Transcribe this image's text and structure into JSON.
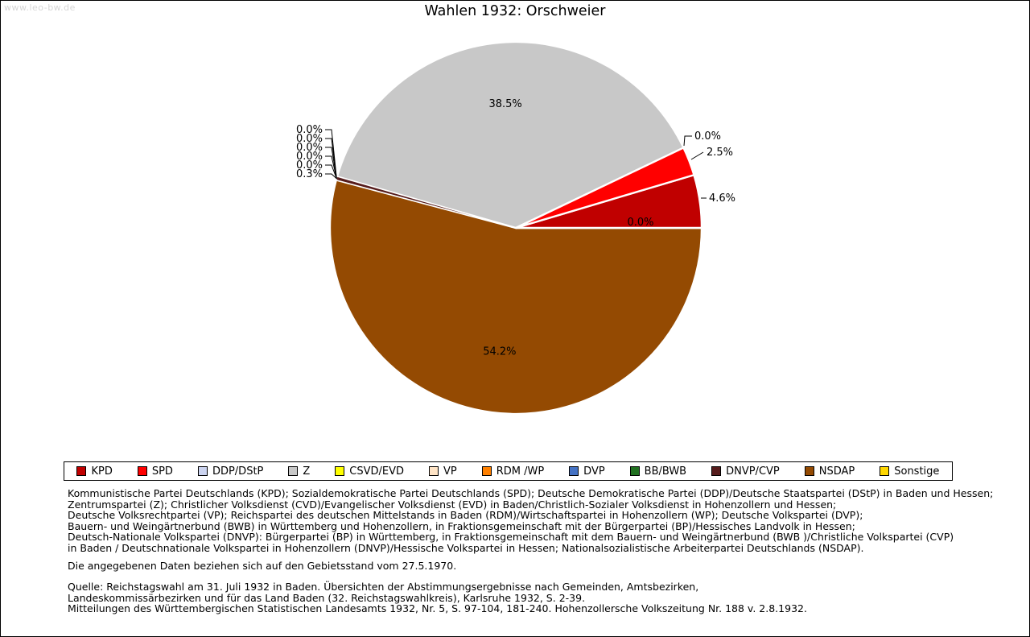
{
  "watermark": "www.leo-bw.de",
  "title": "Wahlen 1932: Orschweier",
  "chart_data": {
    "type": "pie",
    "title": "Wahlen 1932: Orschweier",
    "unit": "percent",
    "legend_position": "bottom",
    "series": [
      {
        "name": "KPD",
        "value": 4.6,
        "color": "#c00000"
      },
      {
        "name": "SPD",
        "value": 2.5,
        "color": "#ff0000"
      },
      {
        "name": "DDP/DStP",
        "value": 0.0,
        "color": "#ccd4f0"
      },
      {
        "name": "Z",
        "value": 38.5,
        "color": "#c8c8c8"
      },
      {
        "name": "CSVD/EVD",
        "value": 0.0,
        "color": "#ffff00"
      },
      {
        "name": "VP",
        "value": 0.0,
        "color": "#ffe4c6"
      },
      {
        "name": "RDM /WP",
        "value": 0.0,
        "color": "#ff8000"
      },
      {
        "name": "DVP",
        "value": 0.0,
        "color": "#4472c4"
      },
      {
        "name": "BB/BWB",
        "value": 0.0,
        "color": "#207020"
      },
      {
        "name": "DNVP/CVP",
        "value": 0.3,
        "color": "#561c1c"
      },
      {
        "name": "NSDAP",
        "value": 54.2,
        "color": "#944a02"
      },
      {
        "name": "Sonstige",
        "value": 0.0,
        "color": "#ffd700"
      }
    ]
  },
  "footnotes": {
    "party_description_lines": [
      "Kommunistische Partei Deutschlands (KPD); Sozialdemokratische Partei Deutschlands (SPD); Deutsche Demokratische Partei (DDP)/Deutsche Staatspartei (DStP) in Baden und Hessen;",
      "Zentrumspartei (Z); Christlicher Volksdienst (CVD)/Evangelischer Volksdienst (EVD) in Baden/Christlich-Sozialer Volksdienst in Hohenzollern und Hessen;",
      "Deutsche Volksrechtpartei (VP); Reichspartei des deutschen Mittelstands in Baden (RDM)/Wirtschaftspartei in Hohenzollern (WP); Deutsche Volkspartei (DVP);",
      "Bauern- und Weingärtnerbund (BWB) in Württemberg und Hohenzollern, in Fraktionsgemeinschaft mit der Bürgerpartei (BP)/Hessisches Landvolk in Hessen;",
      "Deutsch-Nationale Volkspartei (DNVP): Bürgerpartei (BP) in Württemberg, in Fraktionsgemeinschaft mit dem Bauern- und Weingärtnerbund (BWB )/Christliche Volkspartei (CVP)",
      "in Baden / Deutschnationale Volkspartei in Hohenzollern (DNVP)/Hessische Volkspartei in Hessen; Nationalsozialistische Arbeiterpartei Deutschlands (NSDAP)."
    ],
    "note": "Die angegebenen Daten beziehen sich auf den Gebietsstand vom 27.5.1970.",
    "source_lines": [
      "Quelle: Reichstagswahl am 31. Juli 1932 in Baden. Übersichten der Abstimmungsergebnisse nach Gemeinden, Amtsbezirken,",
      "Landeskommissärbezirken und für das Land Baden (32. Reichstagswahlkreis), Karlsruhe 1932, S. 2-39.",
      "Mitteilungen des Württembergischen Statistischen Landesamts 1932, Nr. 5, S. 97-104, 181-240. Hohenzollersche Volkszeitung Nr. 188 v. 2.8.1932."
    ]
  }
}
